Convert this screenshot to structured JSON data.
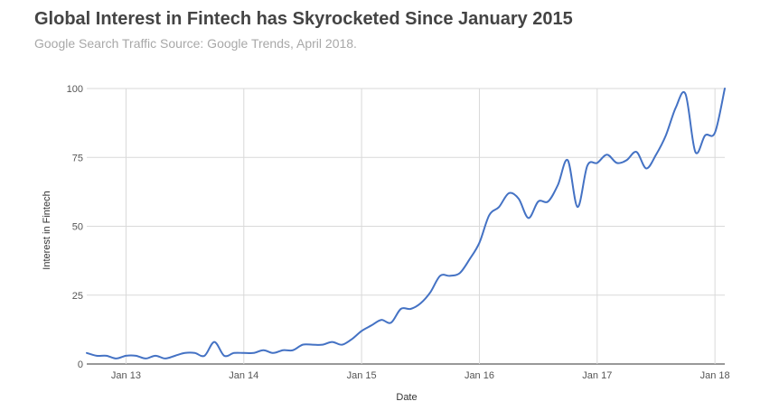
{
  "chart_data": {
    "type": "line",
    "title": "Global Interest in Fintech has Skyrocketed Since January 2015",
    "subtitle": "Google Search Traffic  Source: Google Trends, April 2018.",
    "xlabel": "Date",
    "ylabel": "Interest in Fintech",
    "ylim": [
      0,
      100
    ],
    "yticks": [
      0,
      25,
      50,
      75,
      100
    ],
    "xticks": [
      {
        "label": "Jan 13",
        "x": "2013-01"
      },
      {
        "label": "Jan 14",
        "x": "2014-01"
      },
      {
        "label": "Jan 15",
        "x": "2015-01"
      },
      {
        "label": "Jan 16",
        "x": "2016-01"
      },
      {
        "label": "Jan 17",
        "x": "2017-01"
      },
      {
        "label": "Jan 18",
        "x": "2018-01"
      }
    ],
    "grid": true,
    "legend": "none",
    "series": [
      {
        "color": "#4472c4",
        "points": [
          [
            "2012-09",
            4
          ],
          [
            "2012-10",
            3
          ],
          [
            "2012-11",
            3
          ],
          [
            "2012-12",
            2
          ],
          [
            "2013-01",
            3
          ],
          [
            "2013-02",
            3
          ],
          [
            "2013-03",
            2
          ],
          [
            "2013-04",
            3
          ],
          [
            "2013-05",
            2
          ],
          [
            "2013-06",
            3
          ],
          [
            "2013-07",
            4
          ],
          [
            "2013-08",
            4
          ],
          [
            "2013-09",
            3
          ],
          [
            "2013-10",
            8
          ],
          [
            "2013-11",
            3
          ],
          [
            "2013-12",
            4
          ],
          [
            "2014-01",
            4
          ],
          [
            "2014-02",
            4
          ],
          [
            "2014-03",
            5
          ],
          [
            "2014-04",
            4
          ],
          [
            "2014-05",
            5
          ],
          [
            "2014-06",
            5
          ],
          [
            "2014-07",
            7
          ],
          [
            "2014-08",
            7
          ],
          [
            "2014-09",
            7
          ],
          [
            "2014-10",
            8
          ],
          [
            "2014-11",
            7
          ],
          [
            "2014-12",
            9
          ],
          [
            "2015-01",
            12
          ],
          [
            "2015-02",
            14
          ],
          [
            "2015-03",
            16
          ],
          [
            "2015-04",
            15
          ],
          [
            "2015-05",
            20
          ],
          [
            "2015-06",
            20
          ],
          [
            "2015-07",
            22
          ],
          [
            "2015-08",
            26
          ],
          [
            "2015-09",
            32
          ],
          [
            "2015-10",
            32
          ],
          [
            "2015-11",
            33
          ],
          [
            "2015-12",
            38
          ],
          [
            "2016-01",
            44
          ],
          [
            "2016-02",
            54
          ],
          [
            "2016-03",
            57
          ],
          [
            "2016-04",
            62
          ],
          [
            "2016-05",
            60
          ],
          [
            "2016-06",
            53
          ],
          [
            "2016-07",
            59
          ],
          [
            "2016-08",
            59
          ],
          [
            "2016-09",
            65
          ],
          [
            "2016-10",
            74
          ],
          [
            "2016-11",
            57
          ],
          [
            "2016-12",
            72
          ],
          [
            "2017-01",
            73
          ],
          [
            "2017-02",
            76
          ],
          [
            "2017-03",
            73
          ],
          [
            "2017-04",
            74
          ],
          [
            "2017-05",
            77
          ],
          [
            "2017-06",
            71
          ],
          [
            "2017-07",
            76
          ],
          [
            "2017-08",
            83
          ],
          [
            "2017-09",
            93
          ],
          [
            "2017-10",
            98
          ],
          [
            "2017-11",
            77
          ],
          [
            "2017-12",
            83
          ],
          [
            "2018-01",
            84
          ],
          [
            "2018-02",
            100
          ]
        ]
      }
    ]
  }
}
